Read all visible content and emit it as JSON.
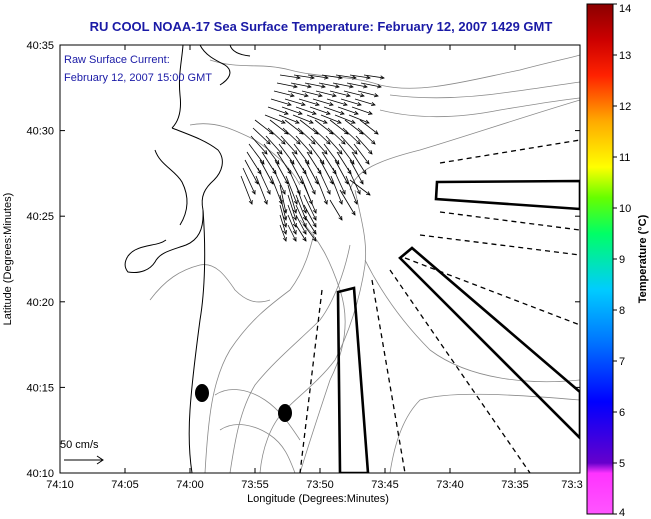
{
  "map": {
    "title": "RU COOL  NOAA-17  Sea Surface Temperature:  February 12, 2007 1429 GMT",
    "annotation_line1": "Raw Surface Current:",
    "annotation_line2": "February 12, 2007 15:00 GMT",
    "scale_label": "50 cm/s",
    "xlabel": "Longitude (Degrees:Minutes)",
    "ylabel": "Latitude (Degrees:Minutes)",
    "x_ticks": [
      "74:10",
      "74:05",
      "74:00",
      "73:55",
      "73:50",
      "73:45",
      "73:40",
      "73:35",
      "73:3"
    ],
    "y_ticks": [
      "40:35",
      "40:30",
      "40:25",
      "40:20",
      "40:15",
      "40:10"
    ],
    "markers": [
      "station",
      "station"
    ]
  },
  "colorbar": {
    "title": "Temperature (°C)",
    "ticks": [
      "14",
      "13",
      "12",
      "11",
      "10",
      "9",
      "8",
      "7",
      "6",
      "5",
      "4"
    ],
    "range": [
      4,
      14
    ],
    "colors": [
      "#ff55ff",
      "#6600cc",
      "#0000ff",
      "#00ccff",
      "#00ff66",
      "#ffff00",
      "#ff9900",
      "#ff0000",
      "#8b0000"
    ]
  }
}
